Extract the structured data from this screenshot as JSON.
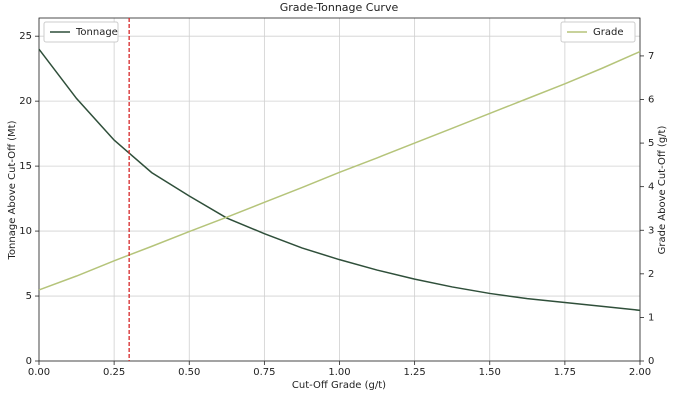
{
  "chart_data": {
    "type": "line",
    "title": "Grade-Tonnage Curve",
    "x_label": "Cut-Off Grade (g/t)",
    "y_label": "Tonnage Above Cut-Off (Mt)",
    "y2_label": "Grade Above Cut-Off (g/t)",
    "x": [
      0,
      0.125,
      0.25,
      0.375,
      0.5,
      0.625,
      0.75,
      0.875,
      1.0,
      1.125,
      1.25,
      1.375,
      1.5,
      1.625,
      1.75,
      1.875,
      2.0
    ],
    "series": [
      {
        "name": "Tonnage",
        "color": "#2f4f3a",
        "axis": "y",
        "legend": "upper left",
        "values": [
          24.0,
          20.2,
          17.0,
          14.5,
          12.7,
          11.0,
          9.8,
          8.7,
          7.8,
          7.0,
          6.3,
          5.7,
          5.2,
          4.8,
          4.5,
          4.2,
          3.9
        ]
      },
      {
        "name": "Grade",
        "color": "#b5c47a",
        "axis": "y2",
        "legend": "upper right",
        "values": [
          1.63,
          1.95,
          2.3,
          2.63,
          2.97,
          3.3,
          3.64,
          3.98,
          4.33,
          4.66,
          5.0,
          5.34,
          5.68,
          6.02,
          6.36,
          6.72,
          7.1
        ]
      }
    ],
    "vline": {
      "x": 0.3,
      "color": "#d62728"
    },
    "xlim": [
      0,
      2.0
    ],
    "ylim": [
      0,
      26.4
    ],
    "y2lim": [
      0,
      7.87
    ],
    "xticks": [
      {
        "value": 0,
        "label": "0.00"
      },
      {
        "value": 0.25,
        "label": "0.25"
      },
      {
        "value": 0.5,
        "label": "0.50"
      },
      {
        "value": 0.75,
        "label": "0.75"
      },
      {
        "value": 1.0,
        "label": "1.00"
      },
      {
        "value": 1.25,
        "label": "1.25"
      },
      {
        "value": 1.5,
        "label": "1.50"
      },
      {
        "value": 1.75,
        "label": "1.75"
      },
      {
        "value": 2.0,
        "label": "2.00"
      }
    ],
    "yticks": [
      0,
      5,
      10,
      15,
      20,
      25
    ],
    "y2ticks": [
      0,
      1,
      2,
      3,
      4,
      5,
      6,
      7
    ],
    "grid": true
  }
}
